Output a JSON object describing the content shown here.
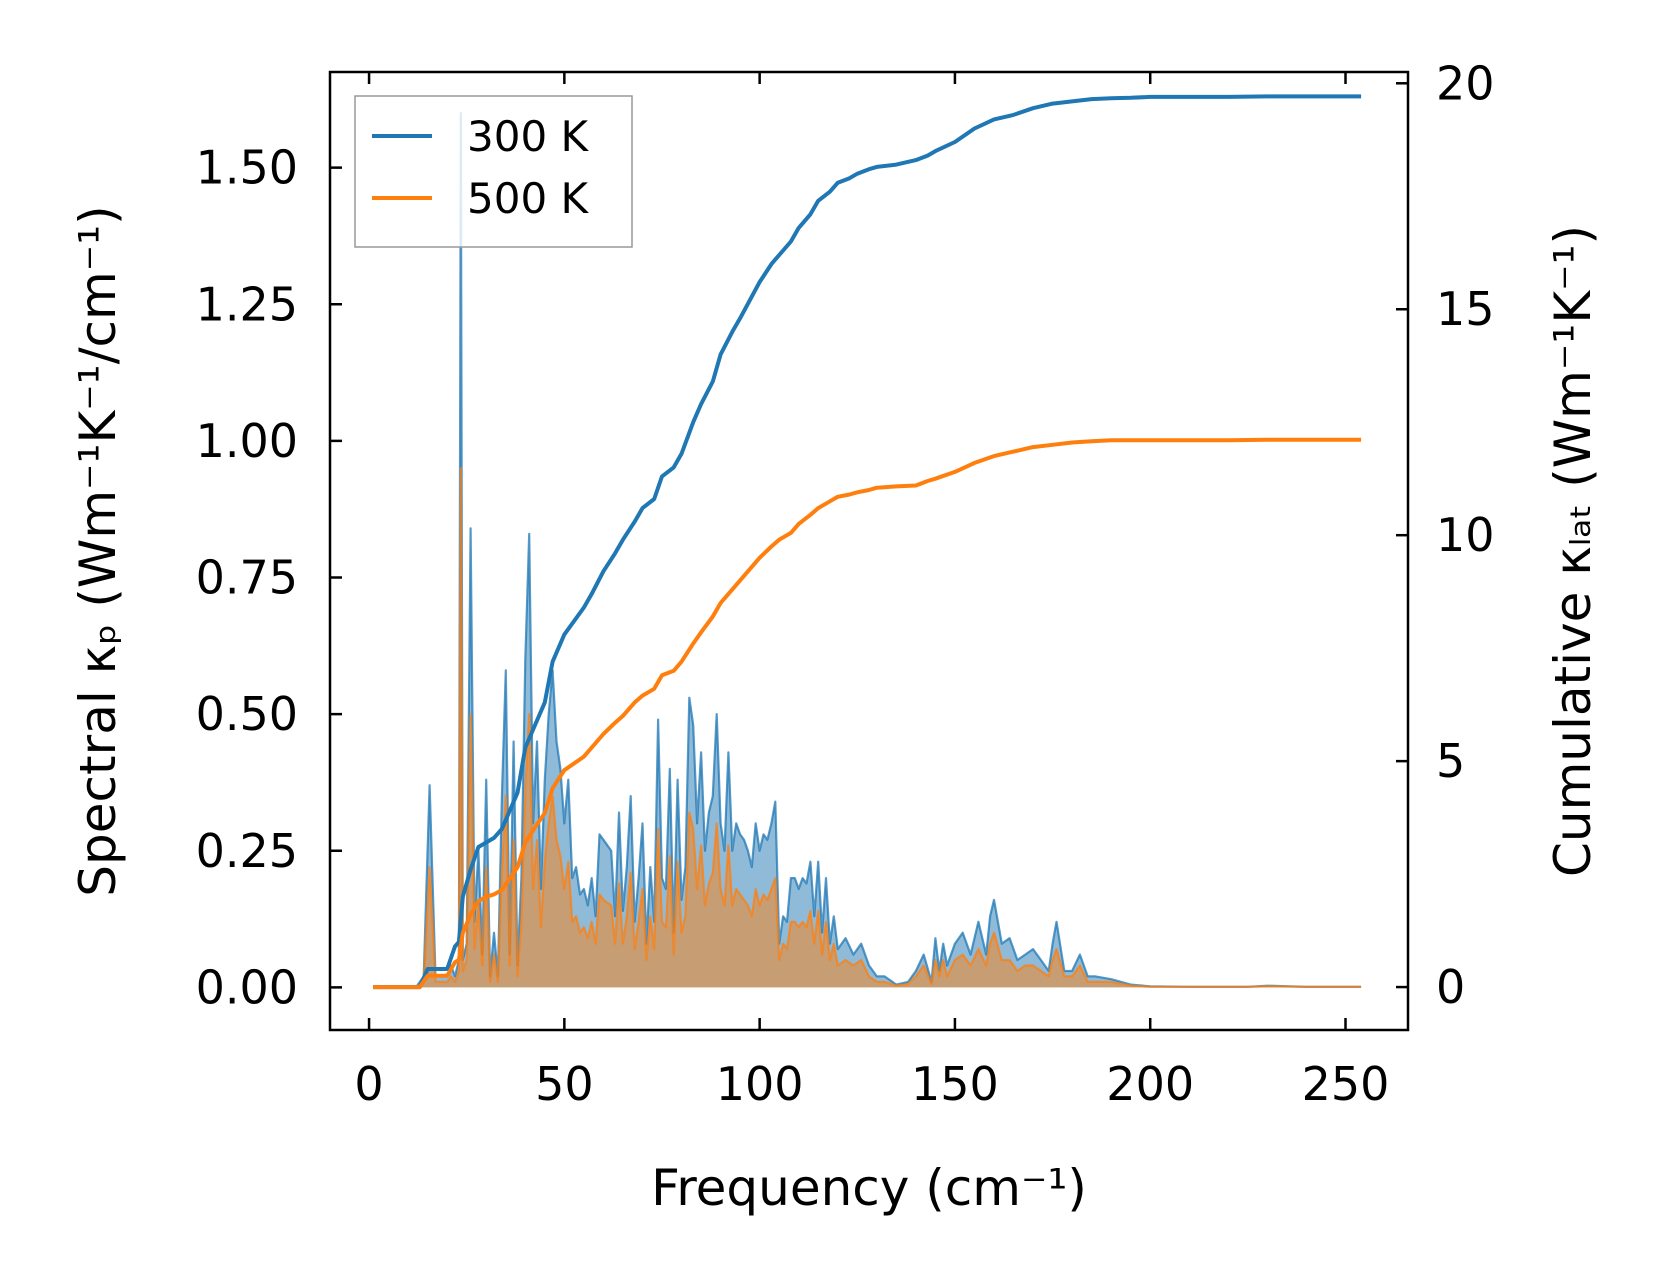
{
  "chart_data": {
    "type": "line",
    "xlabel": "Frequency (cm⁻¹)",
    "xlim": [
      -10,
      266
    ],
    "xticks": [
      0,
      50,
      100,
      150,
      200,
      250
    ],
    "xtick_labels": [
      "0",
      "50",
      "100",
      "150",
      "200",
      "250"
    ],
    "left_axis": {
      "label": "Spectral κₚ (Wm⁻¹K⁻¹/cm⁻¹)",
      "ylim": [
        -0.078,
        1.675
      ],
      "ticks": [
        0.0,
        0.25,
        0.5,
        0.75,
        1.0,
        1.25,
        1.5
      ],
      "tick_labels": [
        "0.00",
        "0.25",
        "0.50",
        "0.75",
        "1.00",
        "1.25",
        "1.50"
      ]
    },
    "right_axis": {
      "label": "Cumulative κₗₐₜ (Wm⁻¹K⁻¹)",
      "ylim": [
        -0.95,
        20.25
      ],
      "ticks": [
        0,
        5,
        10,
        15,
        20
      ],
      "tick_labels": [
        "0",
        "5",
        "10",
        "15",
        "20"
      ]
    },
    "legend": {
      "position": "top-left",
      "entries": [
        "300 K",
        "500 K"
      ]
    },
    "spectral_series": [
      {
        "name": "300 K spectral",
        "color": "#1f77b4",
        "fill": "#1f77b4",
        "x": [
          1,
          12,
          14,
          15.5,
          17,
          20,
          21,
          22,
          23,
          23.5,
          24,
          25,
          26,
          27,
          28,
          29,
          30,
          31,
          32,
          33,
          34,
          35,
          36,
          37,
          38,
          39,
          40,
          41,
          42,
          43,
          44,
          45,
          46,
          47,
          48,
          49,
          50,
          51,
          52,
          53,
          54,
          55,
          56,
          57,
          58,
          59,
          60,
          62,
          63,
          64,
          65,
          66,
          67,
          68,
          69,
          70,
          71,
          72,
          73,
          74,
          75,
          76,
          77,
          78,
          79,
          80,
          81,
          82,
          83,
          84,
          85,
          86,
          87,
          88,
          89,
          90,
          91,
          92,
          93,
          94,
          95,
          96,
          97,
          98,
          99,
          100,
          101,
          102,
          103,
          104,
          105,
          106,
          107,
          108,
          109,
          110,
          111,
          112,
          113,
          114,
          115,
          116,
          117,
          118,
          119,
          120,
          122,
          124,
          126,
          128,
          130,
          132,
          135,
          138,
          140,
          142,
          144,
          145,
          146,
          147,
          148,
          150,
          152,
          154,
          156,
          158,
          159,
          160,
          162,
          164,
          166,
          168,
          170,
          172,
          174,
          175,
          176,
          178,
          180,
          182,
          184,
          186,
          190,
          195,
          200,
          210,
          220,
          225,
          230,
          240,
          254
        ],
        "y": [
          0,
          0,
          0.02,
          0.37,
          0.02,
          0.02,
          0.04,
          0.02,
          0.05,
          1.6,
          0.05,
          0.08,
          0.84,
          0.12,
          0.25,
          0.06,
          0.38,
          0.02,
          0.1,
          0.02,
          0.35,
          0.58,
          0.06,
          0.45,
          0.04,
          0.2,
          0.6,
          0.83,
          0.3,
          0.45,
          0.18,
          0.38,
          0.5,
          0.58,
          0.45,
          0.4,
          0.3,
          0.38,
          0.2,
          0.22,
          0.17,
          0.18,
          0.15,
          0.2,
          0.13,
          0.28,
          0.27,
          0.25,
          0.13,
          0.32,
          0.14,
          0.22,
          0.35,
          0.12,
          0.2,
          0.3,
          0.08,
          0.22,
          0.12,
          0.49,
          0.2,
          0.18,
          0.4,
          0.1,
          0.38,
          0.16,
          0.22,
          0.53,
          0.48,
          0.3,
          0.43,
          0.25,
          0.32,
          0.35,
          0.5,
          0.3,
          0.25,
          0.43,
          0.25,
          0.3,
          0.28,
          0.27,
          0.25,
          0.22,
          0.3,
          0.25,
          0.28,
          0.27,
          0.3,
          0.34,
          0.08,
          0.13,
          0.12,
          0.2,
          0.2,
          0.18,
          0.2,
          0.19,
          0.23,
          0.13,
          0.23,
          0.1,
          0.2,
          0.08,
          0.13,
          0.07,
          0.09,
          0.06,
          0.08,
          0.04,
          0.02,
          0.02,
          0.005,
          0.01,
          0.03,
          0.06,
          0.01,
          0.09,
          0.03,
          0.08,
          0.04,
          0.08,
          0.1,
          0.06,
          0.12,
          0.06,
          0.13,
          0.16,
          0.08,
          0.09,
          0.05,
          0.06,
          0.07,
          0.05,
          0.03,
          0.08,
          0.12,
          0.03,
          0.03,
          0.06,
          0.02,
          0.02,
          0.015,
          0.005,
          0.002,
          0.001,
          0.001,
          0.001,
          0.003,
          0.001,
          0.001
        ]
      },
      {
        "name": "500 K spectral",
        "color": "#ff7f0e",
        "fill": "#ff7f0e",
        "x": [
          1,
          12,
          14,
          15.5,
          17,
          20,
          21,
          22,
          23,
          23.5,
          24,
          25,
          26,
          27,
          28,
          29,
          30,
          31,
          32,
          33,
          34,
          35,
          36,
          37,
          38,
          39,
          40,
          41,
          42,
          43,
          44,
          45,
          46,
          47,
          48,
          49,
          50,
          51,
          52,
          53,
          54,
          55,
          56,
          57,
          58,
          59,
          60,
          62,
          63,
          64,
          65,
          66,
          67,
          68,
          69,
          70,
          71,
          72,
          73,
          74,
          75,
          76,
          77,
          78,
          79,
          80,
          81,
          82,
          83,
          84,
          85,
          86,
          87,
          88,
          89,
          90,
          91,
          92,
          93,
          94,
          95,
          96,
          97,
          98,
          99,
          100,
          101,
          102,
          103,
          104,
          105,
          106,
          107,
          108,
          109,
          110,
          111,
          112,
          113,
          114,
          115,
          116,
          117,
          118,
          119,
          120,
          122,
          124,
          126,
          128,
          130,
          132,
          135,
          138,
          140,
          142,
          144,
          145,
          146,
          147,
          148,
          150,
          152,
          154,
          156,
          158,
          159,
          160,
          162,
          164,
          166,
          168,
          170,
          172,
          174,
          175,
          176,
          178,
          180,
          182,
          184,
          186,
          190,
          195,
          200,
          210,
          220,
          225,
          230,
          240,
          254
        ],
        "y": [
          0,
          0,
          0.01,
          0.22,
          0.01,
          0.01,
          0.02,
          0.01,
          0.03,
          0.95,
          0.03,
          0.05,
          0.5,
          0.07,
          0.15,
          0.04,
          0.22,
          0.01,
          0.06,
          0.01,
          0.21,
          0.35,
          0.04,
          0.27,
          0.02,
          0.12,
          0.36,
          0.5,
          0.18,
          0.27,
          0.11,
          0.23,
          0.3,
          0.35,
          0.27,
          0.24,
          0.18,
          0.23,
          0.12,
          0.13,
          0.1,
          0.11,
          0.09,
          0.12,
          0.08,
          0.17,
          0.16,
          0.15,
          0.08,
          0.19,
          0.08,
          0.13,
          0.21,
          0.07,
          0.12,
          0.18,
          0.05,
          0.13,
          0.07,
          0.29,
          0.12,
          0.11,
          0.24,
          0.06,
          0.23,
          0.1,
          0.13,
          0.32,
          0.29,
          0.18,
          0.26,
          0.15,
          0.19,
          0.21,
          0.3,
          0.18,
          0.15,
          0.26,
          0.15,
          0.18,
          0.17,
          0.16,
          0.15,
          0.13,
          0.18,
          0.15,
          0.17,
          0.16,
          0.18,
          0.2,
          0.05,
          0.08,
          0.07,
          0.12,
          0.12,
          0.11,
          0.12,
          0.11,
          0.14,
          0.08,
          0.14,
          0.06,
          0.12,
          0.05,
          0.08,
          0.04,
          0.05,
          0.04,
          0.05,
          0.02,
          0.01,
          0.01,
          0.003,
          0.006,
          0.02,
          0.04,
          0.006,
          0.05,
          0.02,
          0.05,
          0.02,
          0.05,
          0.06,
          0.04,
          0.07,
          0.04,
          0.08,
          0.1,
          0.05,
          0.05,
          0.03,
          0.04,
          0.04,
          0.03,
          0.02,
          0.05,
          0.07,
          0.02,
          0.02,
          0.04,
          0.01,
          0.01,
          0.01,
          0.003,
          0.001,
          0.001,
          0.001,
          0.001,
          0.002,
          0.001,
          0.001
        ]
      }
    ],
    "cumulative_series": [
      {
        "name": "300 K",
        "color": "#1f77b4",
        "x": [
          1,
          13,
          15,
          20,
          22,
          23,
          24,
          26,
          28,
          30,
          32,
          34,
          36,
          38,
          40,
          43,
          45,
          47,
          50,
          55,
          57,
          60,
          63,
          65,
          68,
          70,
          73,
          75,
          78,
          80,
          83,
          85,
          88,
          90,
          93,
          95,
          100,
          103,
          105,
          108,
          110,
          113,
          115,
          118,
          120,
          123,
          125,
          128,
          130,
          135,
          140,
          143,
          145,
          150,
          155,
          160,
          165,
          170,
          175,
          180,
          185,
          190,
          195,
          200,
          210,
          220,
          230,
          240,
          254
        ],
        "y": [
          0,
          0,
          0.4,
          0.4,
          0.9,
          1.0,
          2.0,
          2.6,
          3.1,
          3.2,
          3.3,
          3.5,
          3.9,
          4.3,
          5.3,
          5.9,
          6.3,
          7.2,
          7.8,
          8.4,
          8.7,
          9.2,
          9.6,
          9.9,
          10.3,
          10.6,
          10.8,
          11.3,
          11.5,
          11.8,
          12.5,
          12.9,
          13.4,
          14.0,
          14.5,
          14.8,
          15.6,
          16.0,
          16.2,
          16.5,
          16.8,
          17.1,
          17.4,
          17.6,
          17.8,
          17.9,
          18.0,
          18.1,
          18.15,
          18.2,
          18.3,
          18.4,
          18.5,
          18.7,
          19.0,
          19.2,
          19.3,
          19.45,
          19.55,
          19.6,
          19.65,
          19.67,
          19.68,
          19.7,
          19.7,
          19.7,
          19.71,
          19.71,
          19.71
        ]
      },
      {
        "name": "500 K",
        "color": "#ff7f0e",
        "x": [
          1,
          13,
          15,
          20,
          22,
          23,
          24,
          26,
          28,
          30,
          32,
          34,
          36,
          38,
          40,
          43,
          45,
          47,
          50,
          55,
          57,
          60,
          63,
          65,
          68,
          70,
          73,
          75,
          78,
          80,
          83,
          85,
          88,
          90,
          93,
          95,
          100,
          103,
          105,
          108,
          110,
          113,
          115,
          118,
          120,
          123,
          125,
          128,
          130,
          135,
          140,
          143,
          145,
          150,
          155,
          160,
          165,
          170,
          175,
          180,
          185,
          190,
          195,
          200,
          210,
          220,
          230,
          240,
          254
        ],
        "y": [
          0,
          0,
          0.25,
          0.25,
          0.55,
          0.6,
          1.2,
          1.6,
          1.9,
          2.0,
          2.05,
          2.15,
          2.4,
          2.65,
          3.2,
          3.6,
          3.85,
          4.4,
          4.8,
          5.1,
          5.3,
          5.6,
          5.85,
          6.0,
          6.3,
          6.45,
          6.6,
          6.9,
          7.0,
          7.2,
          7.6,
          7.85,
          8.2,
          8.5,
          8.8,
          9.0,
          9.5,
          9.75,
          9.9,
          10.05,
          10.25,
          10.45,
          10.6,
          10.75,
          10.85,
          10.9,
          10.95,
          11.0,
          11.05,
          11.08,
          11.1,
          11.2,
          11.25,
          11.4,
          11.6,
          11.75,
          11.85,
          11.95,
          12.0,
          12.05,
          12.08,
          12.1,
          12.1,
          12.1,
          12.1,
          12.1,
          12.11,
          12.11,
          12.11
        ]
      }
    ]
  }
}
